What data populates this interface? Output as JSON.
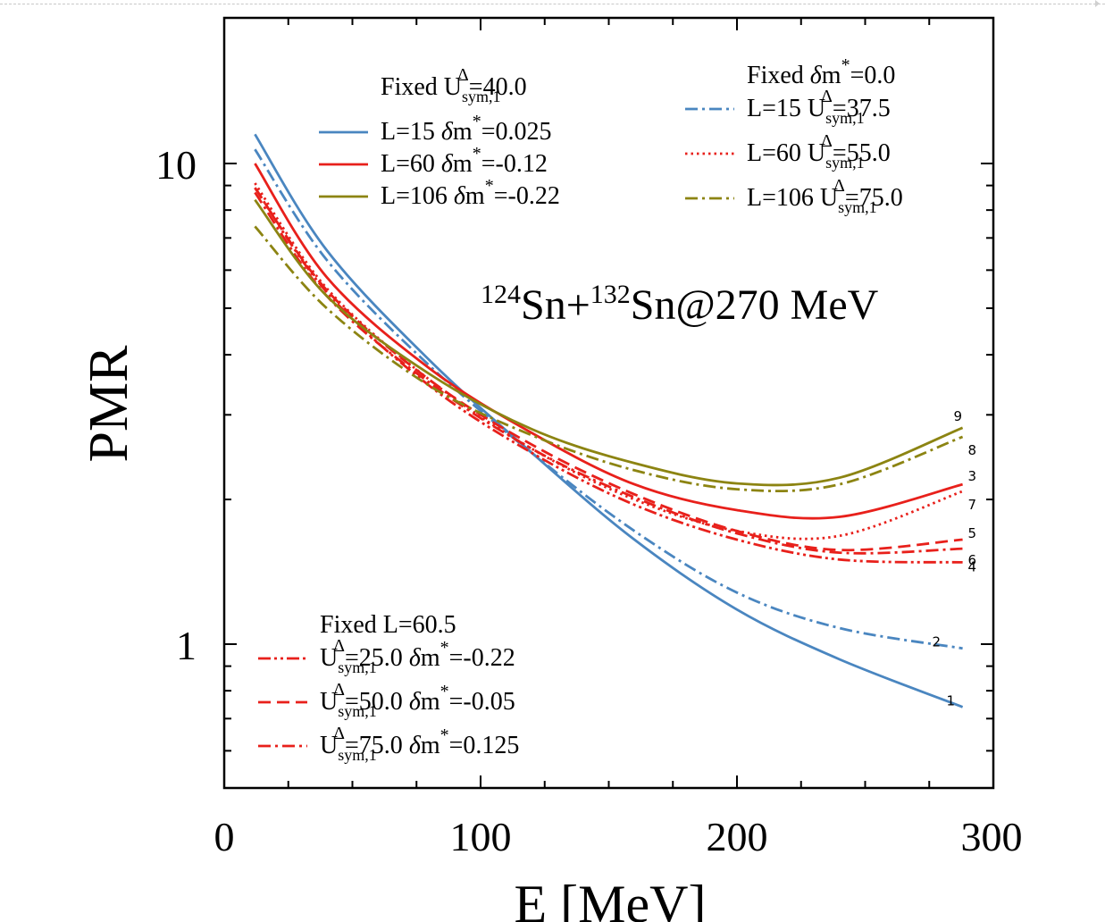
{
  "chart_data": {
    "type": "line",
    "title": "{124}Sn+{132}Sn@270 MeV",
    "title_parts": {
      "iso1": "124",
      "el1": "Sn+",
      "iso2": "132",
      "el2": "Sn@270 MeV"
    },
    "xlabel": "E [MeV]",
    "ylabel": "PMR",
    "xlim": [
      0,
      300
    ],
    "ylim": [
      0.6,
      18
    ],
    "yscale": "log",
    "x_ticks": [
      0,
      100,
      200,
      300
    ],
    "x_tick_labels": [
      "0",
      "100",
      "200",
      "300"
    ],
    "y_ticks": [
      1,
      10
    ],
    "y_tick_labels": [
      "1",
      "10"
    ],
    "grid": false,
    "colors": {
      "blue": "#4a86c0",
      "red": "#e8201b",
      "olive": "#8c8412"
    },
    "legend_groups": [
      {
        "placement": "top-left",
        "header": "Fixed U_sym,1^Δ=40.0",
        "header_parts": [
          "Fixed U",
          "sym,1",
          "Δ",
          "=40.0"
        ],
        "entries": [
          {
            "series": 1,
            "parts": [
              "L=15 ",
              "δ",
              "m",
              "*",
              "=0.025"
            ]
          },
          {
            "series": 3,
            "parts": [
              "L=60 ",
              "δ",
              "m",
              "*",
              "=-0.12"
            ]
          },
          {
            "series": 9,
            "parts": [
              "L=106 ",
              "δ",
              "m",
              "*",
              "=-0.22"
            ]
          }
        ]
      },
      {
        "placement": "top-right",
        "header": "Fixed δm*=0.0",
        "header_parts": [
          "Fixed ",
          "δ",
          "m",
          "*",
          "=0.0"
        ],
        "entries": [
          {
            "series": 2,
            "parts": [
              "L=15 U",
              "sym,1",
              "Δ",
              "=37.5"
            ]
          },
          {
            "series": 7,
            "parts": [
              "L=60 U",
              "sym,1",
              "Δ",
              "=55.0"
            ]
          },
          {
            "series": 8,
            "parts": [
              "L=106 U",
              "sym,1",
              "Δ",
              "=75.0"
            ]
          }
        ]
      },
      {
        "placement": "bottom-left",
        "header": "Fixed L=60.5",
        "entries": [
          {
            "series": 4,
            "parts": [
              "U",
              "sym,1",
              "Δ",
              "=25.0 ",
              "δ",
              "m",
              "*",
              "=-0.22"
            ]
          },
          {
            "series": 5,
            "parts": [
              "U",
              "sym,1",
              "Δ",
              "=50.0 ",
              "δ",
              "m",
              "*",
              "=-0.05"
            ]
          },
          {
            "series": 6,
            "parts": [
              "U",
              "sym,1",
              "Δ",
              "=75.0 ",
              "δ",
              "m",
              "*",
              "=0.125"
            ]
          }
        ]
      }
    ],
    "series": [
      {
        "label": "1",
        "color": "#4a86c0",
        "dash": "solid",
        "x": [
          12,
          40,
          80,
          120,
          160,
          200,
          240,
          288
        ],
        "y": [
          11.5,
          6.6,
          3.9,
          2.5,
          1.65,
          1.18,
          0.93,
          0.74
        ]
      },
      {
        "label": "2",
        "color": "#4a86c0",
        "dash": "dashdot",
        "x": [
          12,
          40,
          80,
          120,
          160,
          200,
          240,
          288
        ],
        "y": [
          10.7,
          6.3,
          3.8,
          2.5,
          1.72,
          1.28,
          1.08,
          0.98
        ]
      },
      {
        "label": "3",
        "color": "#e8201b",
        "dash": "solid",
        "x": [
          12,
          40,
          80,
          120,
          160,
          200,
          240,
          288
        ],
        "y": [
          10.0,
          5.8,
          3.75,
          2.75,
          2.15,
          1.9,
          1.84,
          2.15
        ]
      },
      {
        "label": "4",
        "color": "#e8201b",
        "dash": "dashdotdot",
        "x": [
          12,
          40,
          80,
          120,
          160,
          200,
          240,
          288
        ],
        "y": [
          8.9,
          5.4,
          3.45,
          2.5,
          1.95,
          1.65,
          1.5,
          1.48
        ]
      },
      {
        "label": "5",
        "color": "#e8201b",
        "dash": "dashed",
        "x": [
          12,
          40,
          80,
          120,
          160,
          200,
          240,
          288
        ],
        "y": [
          8.9,
          5.45,
          3.55,
          2.6,
          2.05,
          1.72,
          1.57,
          1.65
        ]
      },
      {
        "label": "6",
        "color": "#e8201b",
        "dash": "dashdot",
        "x": [
          12,
          40,
          80,
          120,
          160,
          200,
          240,
          288
        ],
        "y": [
          8.7,
          5.3,
          3.5,
          2.55,
          2.02,
          1.7,
          1.55,
          1.58
        ]
      },
      {
        "label": "7",
        "color": "#e8201b",
        "dash": "dotted",
        "x": [
          12,
          40,
          80,
          120,
          160,
          200,
          240,
          288
        ],
        "y": [
          9.1,
          5.5,
          3.55,
          2.55,
          2.0,
          1.72,
          1.68,
          2.08
        ]
      },
      {
        "label": "8",
        "color": "#8c8412",
        "dash": "dashdot",
        "x": [
          12,
          40,
          80,
          120,
          160,
          200,
          240,
          288
        ],
        "y": [
          7.4,
          5.0,
          3.45,
          2.72,
          2.3,
          2.1,
          2.15,
          2.7
        ]
      },
      {
        "label": "9",
        "color": "#8c8412",
        "dash": "solid",
        "x": [
          12,
          40,
          80,
          120,
          160,
          200,
          240,
          288
        ],
        "y": [
          8.4,
          5.3,
          3.65,
          2.8,
          2.38,
          2.16,
          2.22,
          2.82
        ]
      }
    ]
  }
}
